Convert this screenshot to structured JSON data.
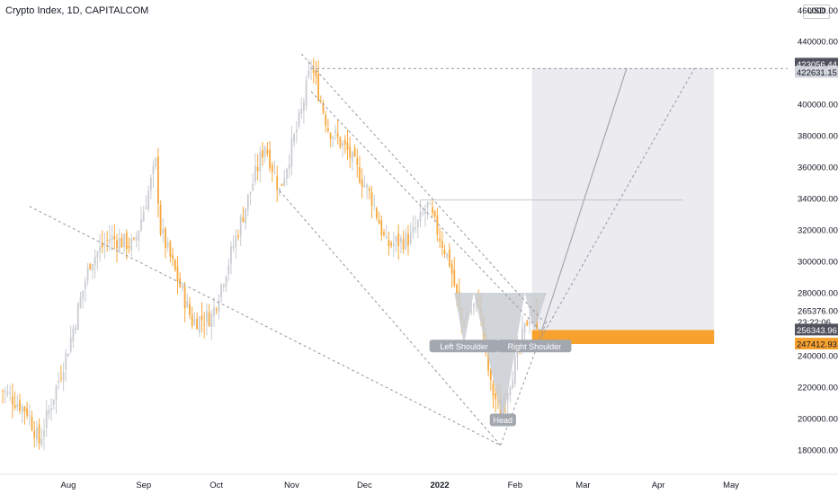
{
  "chart_title": "Crypto Index, 1D, CAPITALCOM",
  "currency": "USD",
  "colors": {
    "up_candle": "#c9ccd1",
    "down_candle": "#f7a83e",
    "target_zone": "#ebebf0",
    "entry_zone": "#f7a12f",
    "pattern_fill": "#c9ccd1",
    "label_bg": "#a3a8b0",
    "dark_label_bg": "#50535e",
    "orange_label_bg": "#f7a12f"
  },
  "y_axis": {
    "ticks": [
      "440000.00",
      "400000.00",
      "380000.00",
      "360000.00",
      "340000.00",
      "320000.00",
      "300000.00",
      "280000.00",
      "240000.00",
      "220000.00",
      "200000.00",
      "180000.00"
    ],
    "tick_values": [
      440000,
      400000,
      380000,
      360000,
      340000,
      320000,
      300000,
      280000,
      240000,
      220000,
      200000,
      180000
    ],
    "top_cut_label": "460000.00"
  },
  "x_axis": {
    "labels": [
      {
        "text": "Aug",
        "bold": false
      },
      {
        "text": "Sep",
        "bold": false
      },
      {
        "text": "Oct",
        "bold": false
      },
      {
        "text": "Nov",
        "bold": false
      },
      {
        "text": "Dec",
        "bold": false
      },
      {
        "text": "2022",
        "bold": true
      },
      {
        "text": "Feb",
        "bold": false
      },
      {
        "text": "Mar",
        "bold": false
      },
      {
        "text": "Apr",
        "bold": false
      },
      {
        "text": "May",
        "bold": false
      }
    ]
  },
  "price_labels": {
    "target_high": "423056.44",
    "target_low": "422631.15",
    "current_price": "265376.00",
    "countdown": "23:22:06",
    "entry_high": "256343.96",
    "entry_low": "247412.93"
  },
  "pattern_labels": {
    "left_shoulder": "Left Shoulder",
    "head": "Head",
    "right_shoulder": "Right Shoulder"
  },
  "chart_data": {
    "type": "candlestick",
    "title": "Crypto Index, 1D, CAPITALCOM",
    "ylim": [
      167000,
      465000
    ],
    "x_range": [
      "2021-07-04",
      "2022-05-21"
    ],
    "series": [
      {
        "close_approx": [
          {
            "date": "2021-07-05",
            "value": 218000
          },
          {
            "date": "2021-07-15",
            "value": 205000
          },
          {
            "date": "2021-07-20",
            "value": 185000
          },
          {
            "date": "2021-08-01",
            "value": 245000
          },
          {
            "date": "2021-08-10",
            "value": 300000
          },
          {
            "date": "2021-08-18",
            "value": 315000
          },
          {
            "date": "2021-08-28",
            "value": 310000
          },
          {
            "date": "2021-09-06",
            "value": 362000
          },
          {
            "date": "2021-09-08",
            "value": 320000
          },
          {
            "date": "2021-09-21",
            "value": 262000
          },
          {
            "date": "2021-09-29",
            "value": 265000
          },
          {
            "date": "2021-10-06",
            "value": 300000
          },
          {
            "date": "2021-10-15",
            "value": 345000
          },
          {
            "date": "2021-10-21",
            "value": 375000
          },
          {
            "date": "2021-10-27",
            "value": 345000
          },
          {
            "date": "2021-11-05",
            "value": 395000
          },
          {
            "date": "2021-11-09",
            "value": 425000
          },
          {
            "date": "2021-11-16",
            "value": 385000
          },
          {
            "date": "2021-11-24",
            "value": 370000
          },
          {
            "date": "2021-12-04",
            "value": 340000
          },
          {
            "date": "2021-12-10",
            "value": 310000
          },
          {
            "date": "2021-12-20",
            "value": 315000
          },
          {
            "date": "2021-12-27",
            "value": 335000
          },
          {
            "date": "2022-01-05",
            "value": 300000
          },
          {
            "date": "2022-01-10",
            "value": 262000
          },
          {
            "date": "2022-01-17",
            "value": 275000
          },
          {
            "date": "2022-01-22",
            "value": 220000
          },
          {
            "date": "2022-01-26",
            "value": 205000
          },
          {
            "date": "2022-02-01",
            "value": 235000
          },
          {
            "date": "2022-02-06",
            "value": 262000
          },
          {
            "date": "2022-02-08",
            "value": 268000
          },
          {
            "date": "2022-02-10",
            "value": 262000
          }
        ]
      }
    ]
  }
}
